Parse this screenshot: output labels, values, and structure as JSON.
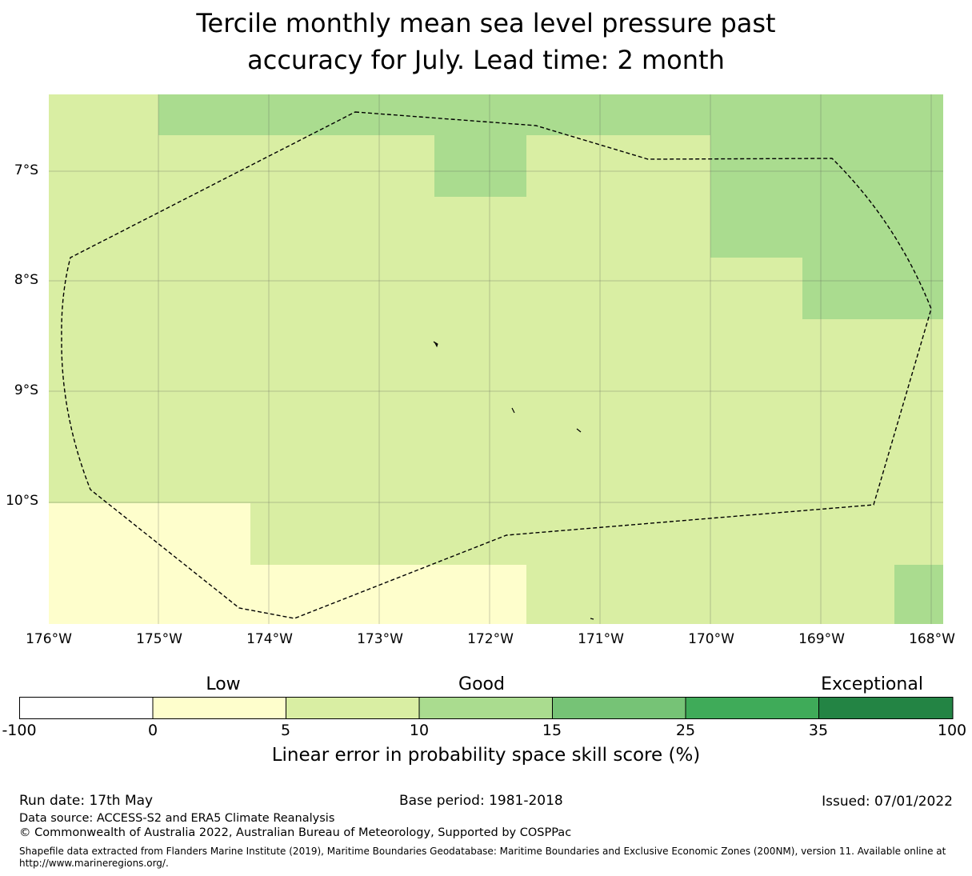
{
  "title_line1": "Tercile monthly mean sea level pressure past",
  "title_line2": "accuracy for July. Lead time: 2 month",
  "map": {
    "lon_range": [
      -176,
      -167.9
    ],
    "lat_range": [
      -11.15,
      -6.3
    ],
    "y_ticks": [
      "7°S",
      "8°S",
      "9°S",
      "10°S"
    ],
    "x_ticks": [
      "176°W",
      "175°W",
      "174°W",
      "173°W",
      "172°W",
      "171°W",
      "170°W",
      "169°W",
      "168°W"
    ],
    "cell_colors": {
      "c0_5": "#fefecc",
      "c5_10": "#d9eea3",
      "c10_15": "#aadc8f"
    }
  },
  "colorbar": {
    "categories": [
      "Low",
      "Good",
      "Exceptional"
    ],
    "ticks": [
      "-100",
      "0",
      "5",
      "10",
      "15",
      "25",
      "35",
      "100"
    ],
    "colors": [
      "#ffffff",
      "#fefecc",
      "#d9eea3",
      "#aadc8f",
      "#76c376",
      "#3fab59",
      "#238444"
    ],
    "label": "Linear error in probability space skill score (%)"
  },
  "footer": {
    "run_date": "Run date: 17th May",
    "base_period": "Base period: 1981-2018",
    "issued": "Issued: 07/01/2022",
    "data_source": "Data source: ACCESS-S2 and ERA5 Climate Reanalysis",
    "copyright": "© Commonwealth of Australia 2022, Australian Bureau of Meteorology, Supported by COSPPac",
    "shapefile": "Shapefile data extracted from Flanders Marine Institute (2019), Maritime Boundaries Geodatabase: Maritime Boundaries and Exclusive Economic Zones (200NM), version 11. Available online at http://www.marineregions.org/."
  }
}
